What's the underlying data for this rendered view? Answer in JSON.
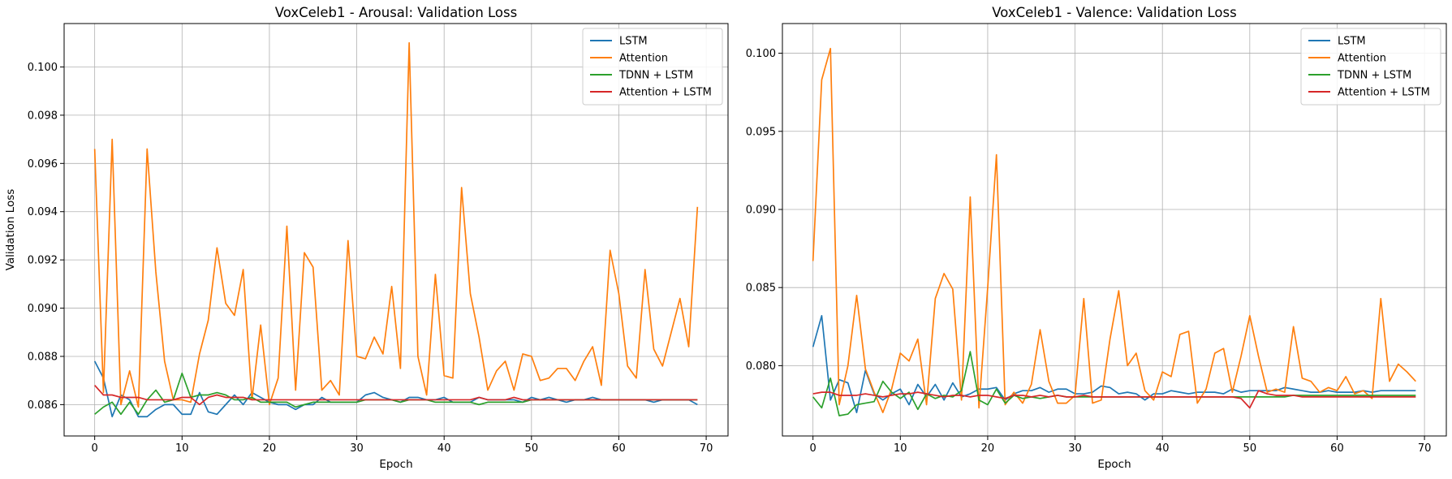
{
  "chart_data": [
    {
      "type": "line",
      "title": "VoxCeleb1 - Arousal: Validation Loss",
      "xlabel": "Epoch",
      "ylabel": "Validation Loss",
      "xlim": [
        -3.5,
        72.5
      ],
      "ylim": [
        0.0847,
        0.1018
      ],
      "xticks": [
        0,
        10,
        20,
        30,
        40,
        50,
        60,
        70
      ],
      "yticks": [
        0.086,
        0.088,
        0.09,
        0.092,
        0.094,
        0.096,
        0.098,
        0.1
      ],
      "ytick_labels": [
        "0.086",
        "0.088",
        "0.090",
        "0.092",
        "0.094",
        "0.096",
        "0.098",
        "0.100"
      ],
      "grid": true,
      "legend_position": "top-right",
      "x": [
        0,
        1,
        2,
        3,
        4,
        5,
        6,
        7,
        8,
        9,
        10,
        11,
        12,
        13,
        14,
        15,
        16,
        17,
        18,
        19,
        20,
        21,
        22,
        23,
        24,
        25,
        26,
        27,
        28,
        29,
        30,
        31,
        32,
        33,
        34,
        35,
        36,
        37,
        38,
        39,
        40,
        41,
        42,
        43,
        44,
        45,
        46,
        47,
        48,
        49,
        50,
        51,
        52,
        53,
        54,
        55,
        56,
        57,
        58,
        59,
        60,
        61,
        62,
        63,
        64,
        65,
        66,
        67,
        68,
        69
      ],
      "series": [
        {
          "name": "LSTM",
          "color": "#1f77b4",
          "values": [
            0.0878,
            0.0871,
            0.0855,
            0.0864,
            0.0862,
            0.0855,
            0.0855,
            0.0858,
            0.086,
            0.086,
            0.0856,
            0.0856,
            0.0865,
            0.0857,
            0.0856,
            0.086,
            0.0864,
            0.086,
            0.0865,
            0.0863,
            0.0861,
            0.086,
            0.086,
            0.0858,
            0.086,
            0.086,
            0.0863,
            0.0861,
            0.0861,
            0.0861,
            0.0861,
            0.0864,
            0.0865,
            0.0863,
            0.0862,
            0.0861,
            0.0863,
            0.0863,
            0.0862,
            0.0862,
            0.0863,
            0.0861,
            0.0861,
            0.0861,
            0.0863,
            0.0862,
            0.0862,
            0.0862,
            0.0862,
            0.0861,
            0.0863,
            0.0862,
            0.0863,
            0.0862,
            0.0861,
            0.0862,
            0.0862,
            0.0863,
            0.0862,
            0.0862,
            0.0862,
            0.0862,
            0.0862,
            0.0862,
            0.0861,
            0.0862,
            0.0862,
            0.0862,
            0.0862,
            0.086
          ]
        },
        {
          "name": "Attention",
          "color": "#ff7f0e",
          "values": [
            0.0966,
            0.0865,
            0.097,
            0.086,
            0.0874,
            0.0859,
            0.0966,
            0.0915,
            0.0878,
            0.0862,
            0.0862,
            0.0861,
            0.0881,
            0.0895,
            0.0925,
            0.0902,
            0.0897,
            0.0916,
            0.0862,
            0.0893,
            0.086,
            0.0871,
            0.0934,
            0.0866,
            0.0923,
            0.0917,
            0.0866,
            0.087,
            0.0864,
            0.0928,
            0.088,
            0.0879,
            0.0888,
            0.0881,
            0.0909,
            0.0875,
            0.101,
            0.088,
            0.0864,
            0.0914,
            0.0872,
            0.0871,
            0.095,
            0.0906,
            0.0888,
            0.0866,
            0.0874,
            0.0878,
            0.0866,
            0.0881,
            0.088,
            0.087,
            0.0871,
            0.0875,
            0.0875,
            0.087,
            0.0878,
            0.0884,
            0.0868,
            0.0924,
            0.0906,
            0.0876,
            0.0871,
            0.0916,
            0.0883,
            0.0876,
            0.089,
            0.0904,
            0.0884,
            0.0942
          ]
        },
        {
          "name": "TDNN + LSTM",
          "color": "#2ca02c",
          "values": [
            0.0856,
            0.0859,
            0.0861,
            0.0856,
            0.0861,
            0.0856,
            0.0862,
            0.0866,
            0.0861,
            0.0862,
            0.0873,
            0.0863,
            0.0864,
            0.0864,
            0.0865,
            0.0864,
            0.0862,
            0.0862,
            0.0863,
            0.0861,
            0.0861,
            0.0861,
            0.0861,
            0.0859,
            0.086,
            0.0861,
            0.0861,
            0.0861,
            0.0861,
            0.0861,
            0.0861,
            0.0862,
            0.0862,
            0.0862,
            0.0862,
            0.0861,
            0.0862,
            0.0862,
            0.0862,
            0.0861,
            0.0861,
            0.0861,
            0.0861,
            0.0861,
            0.086,
            0.0861,
            0.0861,
            0.0861,
            0.0861,
            0.0861,
            0.0862,
            0.0862,
            0.0862,
            0.0862,
            0.0862,
            0.0862,
            0.0862,
            0.0862,
            0.0862,
            0.0862,
            0.0862,
            0.0862,
            0.0862,
            0.0862,
            0.0862,
            0.0862,
            0.0862,
            0.0862,
            0.0862,
            0.0862
          ]
        },
        {
          "name": "Attention + LSTM",
          "color": "#d62728",
          "values": [
            0.0868,
            0.0864,
            0.0864,
            0.0863,
            0.0863,
            0.0863,
            0.0862,
            0.0862,
            0.0862,
            0.0862,
            0.0863,
            0.0863,
            0.086,
            0.0863,
            0.0864,
            0.0863,
            0.0863,
            0.0863,
            0.0862,
            0.0862,
            0.0862,
            0.0862,
            0.0862,
            0.0862,
            0.0862,
            0.0862,
            0.0862,
            0.0862,
            0.0862,
            0.0862,
            0.0862,
            0.0862,
            0.0862,
            0.0862,
            0.0862,
            0.0862,
            0.0862,
            0.0862,
            0.0862,
            0.0862,
            0.0862,
            0.0862,
            0.0862,
            0.0862,
            0.0863,
            0.0862,
            0.0862,
            0.0862,
            0.0863,
            0.0862,
            0.0862,
            0.0862,
            0.0862,
            0.0862,
            0.0862,
            0.0862,
            0.0862,
            0.0862,
            0.0862,
            0.0862,
            0.0862,
            0.0862,
            0.0862,
            0.0862,
            0.0862,
            0.0862,
            0.0862,
            0.0862,
            0.0862,
            0.0862
          ]
        }
      ]
    },
    {
      "type": "line",
      "title": "VoxCeleb1 - Valence: Validation Loss",
      "xlabel": "Epoch",
      "ylabel": "",
      "xlim": [
        -3.5,
        72.5
      ],
      "ylim": [
        0.0755,
        0.1019
      ],
      "xticks": [
        0,
        10,
        20,
        30,
        40,
        50,
        60,
        70
      ],
      "yticks": [
        0.08,
        0.085,
        0.09,
        0.095,
        0.1
      ],
      "ytick_labels": [
        "0.080",
        "0.085",
        "0.090",
        "0.095",
        "0.100"
      ],
      "grid": true,
      "legend_position": "top-right",
      "x": [
        0,
        1,
        2,
        3,
        4,
        5,
        6,
        7,
        8,
        9,
        10,
        11,
        12,
        13,
        14,
        15,
        16,
        17,
        18,
        19,
        20,
        21,
        22,
        23,
        24,
        25,
        26,
        27,
        28,
        29,
        30,
        31,
        32,
        33,
        34,
        35,
        36,
        37,
        38,
        39,
        40,
        41,
        42,
        43,
        44,
        45,
        46,
        47,
        48,
        49,
        50,
        51,
        52,
        53,
        54,
        55,
        56,
        57,
        58,
        59,
        60,
        61,
        62,
        63,
        64,
        65,
        66,
        67,
        68,
        69
      ],
      "series": [
        {
          "name": "LSTM",
          "color": "#1f77b4",
          "values": [
            0.0812,
            0.0832,
            0.0778,
            0.0791,
            0.0789,
            0.077,
            0.0797,
            0.0782,
            0.0778,
            0.0782,
            0.0785,
            0.0775,
            0.0788,
            0.078,
            0.0788,
            0.0778,
            0.0789,
            0.078,
            0.0782,
            0.0785,
            0.0785,
            0.0786,
            0.0778,
            0.0782,
            0.0784,
            0.0784,
            0.0786,
            0.0783,
            0.0785,
            0.0785,
            0.0782,
            0.0782,
            0.0783,
            0.0787,
            0.0786,
            0.0782,
            0.0783,
            0.0782,
            0.0778,
            0.0782,
            0.0782,
            0.0784,
            0.0783,
            0.0782,
            0.0783,
            0.0783,
            0.0783,
            0.0782,
            0.0785,
            0.0783,
            0.0784,
            0.0784,
            0.0784,
            0.0784,
            0.0786,
            0.0785,
            0.0784,
            0.0783,
            0.0783,
            0.0784,
            0.0783,
            0.0783,
            0.0783,
            0.0784,
            0.0783,
            0.0784,
            0.0784,
            0.0784,
            0.0784,
            0.0784
          ]
        },
        {
          "name": "Attention",
          "color": "#ff7f0e",
          "values": [
            0.0867,
            0.0983,
            0.1003,
            0.0775,
            0.08,
            0.0845,
            0.0798,
            0.0783,
            0.077,
            0.0785,
            0.0808,
            0.0803,
            0.0817,
            0.0775,
            0.0843,
            0.0859,
            0.0849,
            0.0778,
            0.0908,
            0.0773,
            0.085,
            0.0935,
            0.0775,
            0.0783,
            0.0776,
            0.0788,
            0.0823,
            0.079,
            0.0776,
            0.0776,
            0.0781,
            0.0843,
            0.0776,
            0.0778,
            0.0817,
            0.0848,
            0.08,
            0.0808,
            0.0784,
            0.0778,
            0.0796,
            0.0793,
            0.082,
            0.0822,
            0.0776,
            0.0785,
            0.0808,
            0.0811,
            0.0783,
            0.0806,
            0.0832,
            0.0806,
            0.0783,
            0.0785,
            0.0783,
            0.0825,
            0.0792,
            0.079,
            0.0783,
            0.0786,
            0.0784,
            0.0793,
            0.0782,
            0.0784,
            0.0779,
            0.0843,
            0.079,
            0.0801,
            0.0796,
            0.079
          ]
        },
        {
          "name": "TDNN + LSTM",
          "color": "#2ca02c",
          "values": [
            0.078,
            0.0773,
            0.0792,
            0.0768,
            0.0769,
            0.0775,
            0.0776,
            0.0777,
            0.079,
            0.0783,
            0.0779,
            0.0783,
            0.0772,
            0.0782,
            0.0779,
            0.0781,
            0.078,
            0.0784,
            0.0809,
            0.0778,
            0.0775,
            0.0785,
            0.0776,
            0.0781,
            0.0779,
            0.078,
            0.0779,
            0.078,
            0.0781,
            0.078,
            0.078,
            0.078,
            0.078,
            0.078,
            0.078,
            0.078,
            0.078,
            0.078,
            0.078,
            0.078,
            0.078,
            0.078,
            0.078,
            0.078,
            0.078,
            0.078,
            0.078,
            0.078,
            0.078,
            0.078,
            0.078,
            0.078,
            0.078,
            0.078,
            0.078,
            0.0781,
            0.0781,
            0.0781,
            0.0781,
            0.0781,
            0.0781,
            0.0781,
            0.0781,
            0.0781,
            0.0781,
            0.0781,
            0.0781,
            0.0781,
            0.0781,
            0.0781
          ]
        },
        {
          "name": "Attention + LSTM",
          "color": "#d62728",
          "values": [
            0.0782,
            0.0783,
            0.0783,
            0.0781,
            0.0781,
            0.0781,
            0.0782,
            0.0781,
            0.078,
            0.0781,
            0.0782,
            0.0782,
            0.0783,
            0.0782,
            0.0781,
            0.078,
            0.0781,
            0.0781,
            0.078,
            0.0781,
            0.0781,
            0.078,
            0.0779,
            0.0781,
            0.0781,
            0.078,
            0.0781,
            0.078,
            0.0781,
            0.078,
            0.078,
            0.0781,
            0.078,
            0.078,
            0.078,
            0.078,
            0.078,
            0.078,
            0.078,
            0.078,
            0.078,
            0.078,
            0.078,
            0.078,
            0.078,
            0.078,
            0.078,
            0.078,
            0.078,
            0.0779,
            0.0773,
            0.0784,
            0.0782,
            0.0781,
            0.0781,
            0.0781,
            0.078,
            0.078,
            0.078,
            0.078,
            0.078,
            0.078,
            0.078,
            0.078,
            0.078,
            0.078,
            0.078,
            0.078,
            0.078,
            0.078
          ]
        }
      ]
    }
  ]
}
